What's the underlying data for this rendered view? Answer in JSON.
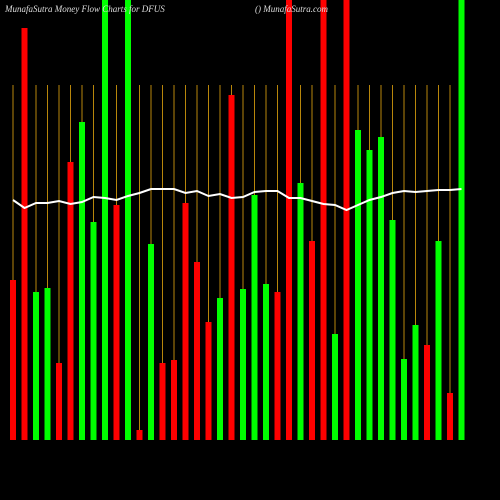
{
  "chart_data": {
    "type": "bar",
    "title": "MunafaSutra  Money Flow  Charts for DFUS",
    "subtitle": "() MunafaSutra.com",
    "categories": [
      null,
      null,
      null,
      null,
      null,
      null,
      null,
      null,
      null,
      null,
      null,
      null,
      null,
      null,
      null,
      null,
      null,
      null,
      null,
      null,
      null,
      null,
      null,
      null,
      null,
      null,
      null,
      null,
      null,
      null,
      null,
      null,
      null,
      null,
      null,
      null,
      null,
      null,
      null,
      null
    ],
    "values": [
      160,
      412,
      148,
      152,
      77,
      278,
      318,
      218,
      440,
      235,
      440,
      10,
      196,
      77,
      80,
      237,
      178,
      118,
      142,
      345,
      151,
      245,
      156,
      148,
      440,
      257,
      199,
      440,
      106,
      440,
      310,
      290,
      303,
      220,
      81,
      115,
      95,
      199,
      47,
      440
    ],
    "colors": [
      "#ff0000",
      "#ff0000",
      "#00ff00",
      "#00ff00",
      "#ff0000",
      "#ff0000",
      "#00ff00",
      "#00ff00",
      "#00ff00",
      "#ff0000",
      "#00ff00",
      "#ff0000",
      "#00ff00",
      "#ff0000",
      "#ff0000",
      "#ff0000",
      "#ff0000",
      "#ff0000",
      "#00ff00",
      "#ff0000",
      "#00ff00",
      "#00ff00",
      "#00ff00",
      "#ff0000",
      "#ff0000",
      "#00ff00",
      "#ff0000",
      "#ff0000",
      "#00ff00",
      "#ff0000",
      "#00ff00",
      "#00ff00",
      "#00ff00",
      "#00ff00",
      "#00ff00",
      "#00ff00",
      "#ff0000",
      "#00ff00",
      "#ff0000",
      "#00ff00"
    ],
    "overlay_line": {
      "color": "#ffffff",
      "values": [
        240,
        232,
        237,
        237,
        239,
        236,
        238,
        243,
        242,
        240,
        244,
        247,
        251,
        251,
        251,
        247,
        249,
        244,
        246,
        242,
        243,
        248,
        249,
        249,
        242,
        242,
        239,
        236,
        235,
        230,
        235,
        240,
        243,
        247,
        249,
        248,
        249,
        250,
        250,
        251
      ]
    },
    "guide_color": "#b8860b",
    "ylim": [
      0,
      440
    ]
  }
}
